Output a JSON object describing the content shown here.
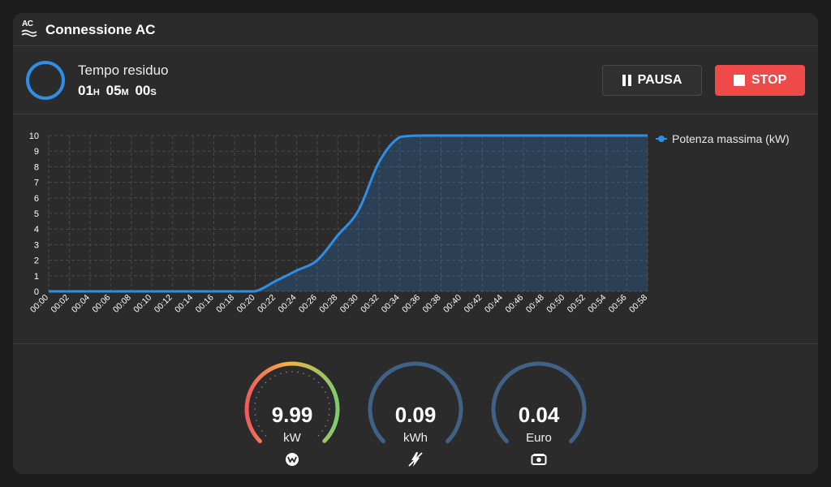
{
  "header": {
    "title": "Connessione AC",
    "icon": "ac-icon",
    "icon_text": "AC"
  },
  "timer": {
    "label": "Tempo residuo",
    "hours": "01",
    "hours_unit": "H",
    "minutes": "05",
    "minutes_unit": "M",
    "seconds": "00",
    "seconds_unit": "S"
  },
  "buttons": {
    "pause_label": "PAUSA",
    "stop_label": "STOP"
  },
  "colors": {
    "accent": "#2f8ee6",
    "stop": "#ef4a4a",
    "gauge_track": "#3f6286"
  },
  "chart_data": {
    "type": "area",
    "x": [
      "00:00",
      "00:02",
      "00:04",
      "00:06",
      "00:08",
      "00:10",
      "00:12",
      "00:14",
      "00:16",
      "00:18",
      "00:20",
      "00:22",
      "00:24",
      "00:26",
      "00:28",
      "00:30",
      "00:32",
      "00:34",
      "00:36",
      "00:38",
      "00:40",
      "00:42",
      "00:44",
      "00:46",
      "00:48",
      "00:50",
      "00:52",
      "00:54",
      "00:56",
      "00:58"
    ],
    "series": [
      {
        "name": "Potenza massima (kW)",
        "values": [
          0,
          0,
          0,
          0,
          0,
          0,
          0,
          0,
          0,
          0,
          0,
          0.67,
          1.33,
          2,
          3.6,
          5.2,
          8.3,
          9.9,
          10,
          10,
          10,
          10,
          10,
          10,
          10,
          10,
          10,
          10,
          10,
          10
        ]
      }
    ],
    "yticks": [
      0,
      1,
      2,
      3,
      4,
      5,
      6,
      7,
      8,
      9,
      10
    ],
    "ylim": [
      0,
      10
    ],
    "grid": true,
    "legend": "right"
  },
  "gauges": [
    {
      "value": "9.99",
      "unit": "kW",
      "icon": "power-icon",
      "fraction": 0.999
    },
    {
      "value": "0.09",
      "unit": "kWh",
      "icon": "energy-icon",
      "fraction": 1
    },
    {
      "value": "0.04",
      "unit": "Euro",
      "icon": "money-icon",
      "fraction": 1
    }
  ]
}
